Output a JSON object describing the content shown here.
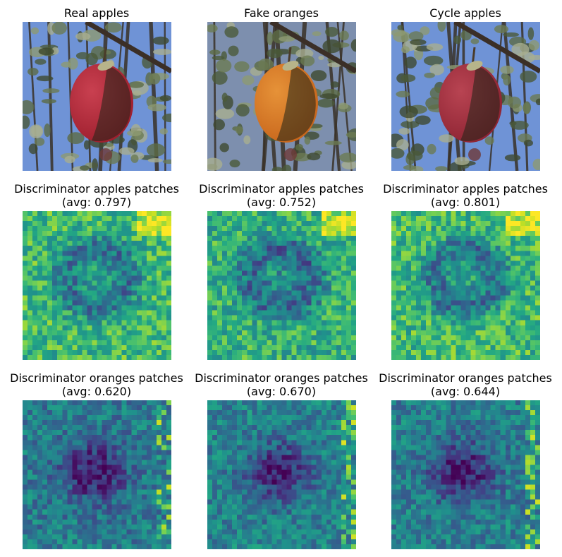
{
  "figure": {
    "rows": [
      {
        "panels": [
          {
            "title_line1": "Real apples",
            "title_line2": "",
            "kind": "photo",
            "fruit": "apple",
            "fruit_color": "#9e1f2e",
            "fruit_highlight": "#c94050"
          },
          {
            "title_line1": "Fake oranges",
            "title_line2": "",
            "kind": "photo",
            "fruit": "orange",
            "fruit_color": "#c8661c",
            "fruit_highlight": "#e69238"
          },
          {
            "title_line1": "Cycle apples",
            "title_line2": "",
            "kind": "photo",
            "fruit": "apple",
            "fruit_color": "#8e2433",
            "fruit_highlight": "#b84452"
          }
        ]
      },
      {
        "panels": [
          {
            "title_line1": "Discriminator apples patches",
            "title_line2": "(avg: 0.797)",
            "kind": "heatmap",
            "average": 0.797,
            "pattern": "apples-real"
          },
          {
            "title_line1": "Discriminator apples patches",
            "title_line2": "(avg: 0.752)",
            "kind": "heatmap",
            "average": 0.752,
            "pattern": "apples-fake"
          },
          {
            "title_line1": "Discriminator apples patches",
            "title_line2": "(avg: 0.801)",
            "kind": "heatmap",
            "average": 0.801,
            "pattern": "apples-cycle"
          }
        ]
      },
      {
        "panels": [
          {
            "title_line1": "Discriminator oranges patches",
            "title_line2": "(avg: 0.620)",
            "kind": "heatmap",
            "average": 0.62,
            "pattern": "oranges-real"
          },
          {
            "title_line1": "Discriminator oranges patches",
            "title_line2": "(avg: 0.670)",
            "kind": "heatmap",
            "average": 0.67,
            "pattern": "oranges-fake"
          },
          {
            "title_line1": "Discriminator oranges patches",
            "title_line2": "(avg: 0.644)",
            "kind": "heatmap",
            "average": 0.644,
            "pattern": "oranges-cycle"
          }
        ]
      }
    ],
    "colormap": "viridis",
    "grid_resolution": 30
  }
}
